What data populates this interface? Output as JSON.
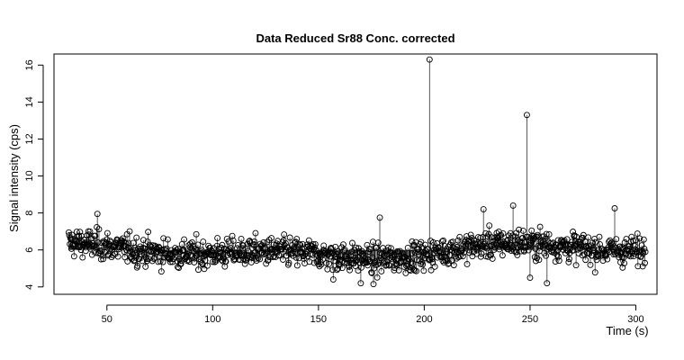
{
  "chart_data": {
    "type": "line",
    "title": "Data Reduced Sr88 Conc. corrected",
    "xlabel": "Time (s)",
    "ylabel": "Signal intensity (cps)",
    "xlim": [
      25,
      310
    ],
    "ylim": [
      3.6,
      16.6
    ],
    "xticks": [
      50,
      100,
      150,
      200,
      250,
      300
    ],
    "yticks": [
      4,
      6,
      8,
      10,
      12,
      14,
      16
    ],
    "grid": false,
    "legend": "none",
    "marker": "open-circle",
    "line_style": "type h (vertical lines from baseline)",
    "x_start": 32,
    "x_end": 304.5,
    "x_step": 0.25,
    "baseline": 6.0,
    "series": [
      {
        "values_summary": "approximately 1090 points, mostly between 4.2 and 8.4",
        "peaks": [
          {
            "x": 202.5,
            "y": 16.3
          },
          {
            "x": 248.5,
            "y": 13.3
          },
          {
            "x": 242.0,
            "y": 8.4
          },
          {
            "x": 45.5,
            "y": 7.95
          },
          {
            "x": 179.0,
            "y": 7.75
          },
          {
            "x": 228.0,
            "y": 8.2
          },
          {
            "x": 290.0,
            "y": 8.25
          },
          {
            "x": 170.0,
            "y": 4.2
          },
          {
            "x": 157.0,
            "y": 4.4
          },
          {
            "x": 176.0,
            "y": 4.15
          },
          {
            "x": 258.0,
            "y": 4.2
          },
          {
            "x": 250.0,
            "y": 4.5
          }
        ]
      }
    ]
  }
}
